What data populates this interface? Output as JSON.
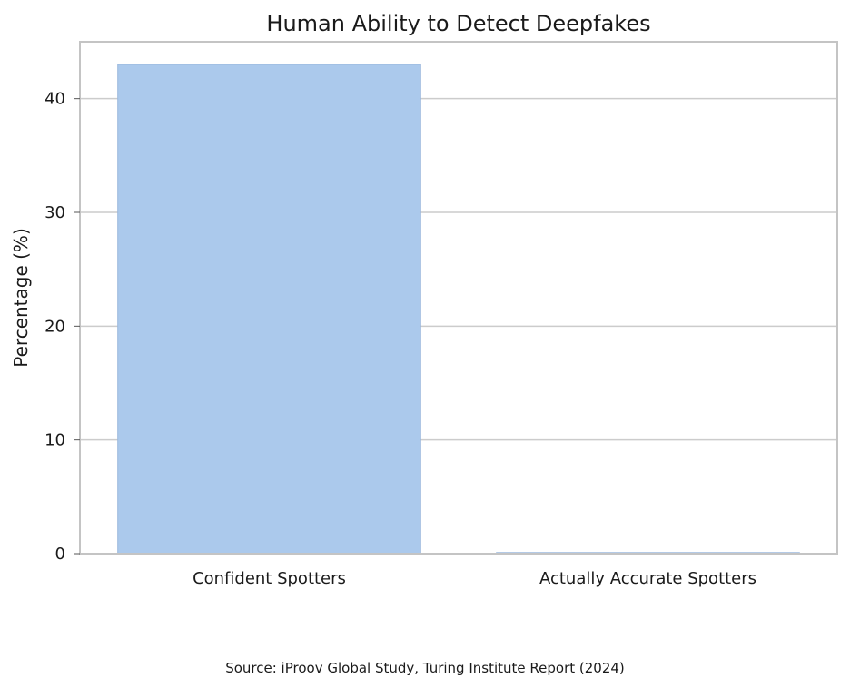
{
  "chart_data": {
    "type": "bar",
    "title": "Human Ability to Detect Deepfakes",
    "xlabel": "",
    "ylabel": "Percentage (%)",
    "categories": [
      "Confident Spotters",
      "Actually Accurate Spotters"
    ],
    "values": [
      43,
      0.1
    ],
    "ylim": [
      0,
      45
    ],
    "yticks": [
      "0",
      "10",
      "20",
      "30",
      "40"
    ],
    "grid": "y",
    "legend": "none",
    "bar_color": "#abc9ec",
    "bar_edge_color": "#9bb8dd",
    "grid_color": "#cccccc",
    "frame_color": "#c4c4c4"
  },
  "footer": {
    "source": "Source: iProov Global Study, Turing Institute Report (2024)"
  }
}
